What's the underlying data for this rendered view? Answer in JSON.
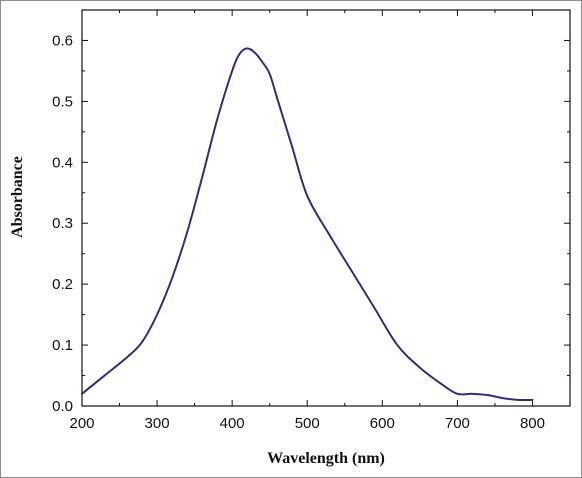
{
  "chart_data": {
    "type": "line",
    "title": "",
    "xlabel": "Wavelength (nm)",
    "ylabel": "Absorbance",
    "xlim": [
      200,
      850
    ],
    "ylim": [
      0,
      0.65
    ],
    "xticks": [
      200,
      300,
      400,
      500,
      600,
      700,
      800
    ],
    "yticks": [
      0.0,
      0.1,
      0.2,
      0.3,
      0.4,
      0.5,
      0.6
    ],
    "xtick_labels": [
      "200",
      "300",
      "400",
      "500",
      "600",
      "700",
      "800"
    ],
    "ytick_labels": [
      "0.0",
      "0.1",
      "0.2",
      "0.3",
      "0.4",
      "0.5",
      "0.6"
    ],
    "grid": false,
    "line_color": "#2e2e7a",
    "series": [
      {
        "x": [
          200,
          230,
          260,
          280,
          300,
          320,
          340,
          360,
          380,
          400,
          410,
          420,
          430,
          440,
          450,
          460,
          480,
          500,
          530,
          560,
          590,
          620,
          650,
          680,
          700,
          720,
          740,
          760,
          780,
          800
        ],
        "values": [
          0.02,
          0.05,
          0.08,
          0.105,
          0.15,
          0.21,
          0.285,
          0.375,
          0.47,
          0.55,
          0.578,
          0.587,
          0.58,
          0.565,
          0.545,
          0.505,
          0.425,
          0.345,
          0.28,
          0.22,
          0.16,
          0.1,
          0.063,
          0.035,
          0.02,
          0.02,
          0.018,
          0.013,
          0.01,
          0.01
        ]
      }
    ]
  }
}
